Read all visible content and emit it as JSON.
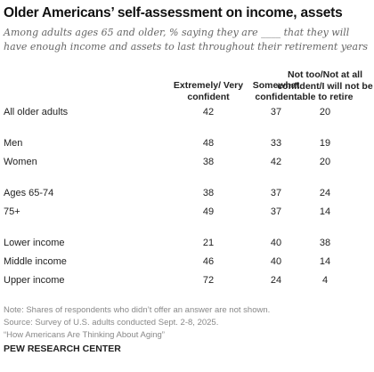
{
  "chart_data": {
    "type": "table",
    "title": "Older Americans’ self-assessment on income, assets",
    "subtitle": "Among adults ages 65 and older, % saying they are ____ that they will have enough income and assets to last throughout their retirement years",
    "columns": [
      "Extremely/ Very confident",
      "Somewhat confident",
      "Not too/Not at all confident/I will not be able to retire"
    ],
    "rows": [
      {
        "label": "All older adults",
        "values": [
          42,
          37,
          20
        ]
      },
      {
        "label": "Men",
        "values": [
          48,
          33,
          19
        ]
      },
      {
        "label": "Women",
        "values": [
          38,
          42,
          20
        ]
      },
      {
        "label": "Ages 65-74",
        "values": [
          38,
          37,
          24
        ]
      },
      {
        "label": "75+",
        "values": [
          49,
          37,
          14
        ]
      },
      {
        "label": "Lower income",
        "values": [
          21,
          40,
          38
        ]
      },
      {
        "label": "Middle income",
        "values": [
          46,
          40,
          14
        ]
      },
      {
        "label": "Upper income",
        "values": [
          72,
          24,
          4
        ]
      }
    ]
  },
  "footer": {
    "note": "Note: Shares of respondents who didn’t offer an answer are not shown.",
    "source": "Source: Survey of U.S. adults conducted Sept. 2-8, 2025.",
    "report": "“How Americans Are Thinking About Aging”",
    "brand": "PEW RESEARCH CENTER"
  }
}
